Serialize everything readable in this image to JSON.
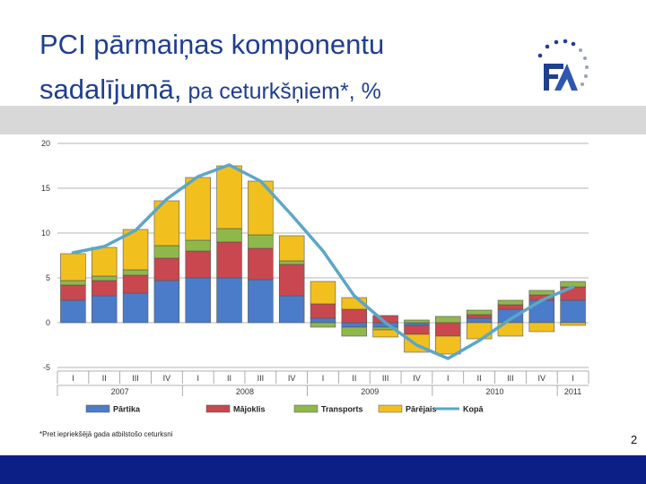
{
  "slide": {
    "title_line1": "PCI pārmaiņas komponentu",
    "title_line2": "sadalījumā,",
    "title_suffix": " pa ceturkšņiem*, %",
    "footnote": "*Pret iepriekšējā gada atbilstošo ceturksni",
    "page_number": "2"
  },
  "colors": {
    "Pārtika": "#4a7cc9",
    "Mājoklis": "#c9474f",
    "Transports": "#8fb84a",
    "Pārējais": "#f2c01e",
    "Kopā": "#5ba6c8",
    "title": "#1f3f8f",
    "bottom_bar": "#0b1f86"
  },
  "chart_data": {
    "type": "bar",
    "stacked": true,
    "title": "PCI pārmaiņas komponentu sadalījumā, pa ceturkšņiem*, %",
    "xlabel": "",
    "ylabel": "",
    "ylim": [
      -5,
      20
    ],
    "yticks": [
      -5,
      0,
      5,
      10,
      15,
      20
    ],
    "grid": true,
    "legend_position": "bottom",
    "categories": [
      "I",
      "II",
      "III",
      "IV",
      "I",
      "II",
      "III",
      "IV",
      "I",
      "II",
      "III",
      "IV",
      "I",
      "II",
      "III",
      "IV",
      "I"
    ],
    "years": [
      {
        "label": "2007",
        "start": 0,
        "end": 3
      },
      {
        "label": "2008",
        "start": 4,
        "end": 7
      },
      {
        "label": "2009",
        "start": 8,
        "end": 11
      },
      {
        "label": "2010",
        "start": 12,
        "end": 15
      },
      {
        "label": "2011",
        "start": 16,
        "end": 16
      }
    ],
    "series": [
      {
        "name": "Pārtika",
        "values": [
          2.5,
          3.0,
          3.3,
          4.7,
          5.0,
          5.0,
          4.8,
          3.0,
          0.5,
          -0.5,
          -0.5,
          -0.3,
          0.0,
          0.5,
          1.5,
          2.5,
          2.5
        ]
      },
      {
        "name": "Mājoklis",
        "values": [
          1.7,
          1.7,
          2.0,
          2.5,
          3.0,
          4.0,
          3.5,
          3.5,
          1.6,
          1.5,
          0.8,
          -1.0,
          -1.5,
          0.4,
          0.5,
          0.6,
          1.5
        ]
      },
      {
        "name": "Transports",
        "values": [
          0.5,
          0.5,
          0.6,
          1.4,
          1.2,
          1.5,
          1.5,
          0.4,
          -0.5,
          -1.0,
          -0.3,
          0.3,
          0.7,
          0.5,
          0.5,
          0.5,
          0.6
        ]
      },
      {
        "name": "Pārējais",
        "values": [
          3.0,
          3.2,
          4.5,
          5.0,
          7.0,
          7.0,
          6.0,
          2.8,
          2.5,
          1.3,
          -0.8,
          -2.0,
          -2.0,
          -1.8,
          -1.5,
          -1.0,
          -0.3
        ]
      }
    ],
    "line_series": {
      "name": "Kopā",
      "values": [
        7.8,
        8.5,
        10.3,
        13.8,
        16.3,
        17.6,
        15.8,
        12.0,
        8.0,
        3.0,
        0.0,
        -2.5,
        -4.0,
        -2.0,
        0.4,
        2.5,
        4.0
      ]
    },
    "legend": [
      "Pārtika",
      "Mājoklis",
      "Transports",
      "Pārējais",
      "Kopā"
    ]
  }
}
